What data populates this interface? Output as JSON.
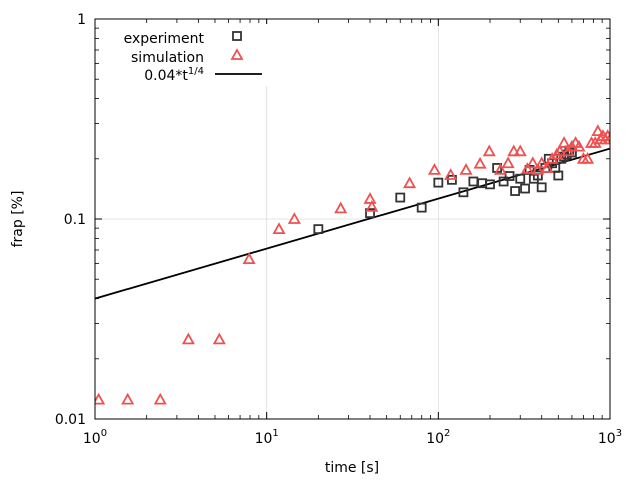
{
  "chart_data": {
    "type": "scatter",
    "xlabel": "time [s]",
    "ylabel": "frap [%]",
    "xscale": "log",
    "yscale": "log",
    "xlim": [
      1,
      1000
    ],
    "ylim": [
      0.01,
      1
    ],
    "grid": true,
    "legend_position": "top-left",
    "x_ticks": [
      {
        "value": 1,
        "base": "10",
        "exp": "0"
      },
      {
        "value": 10,
        "base": "10",
        "exp": "1"
      },
      {
        "value": 100,
        "base": "10",
        "exp": "2"
      },
      {
        "value": 1000,
        "base": "10",
        "exp": "3"
      }
    ],
    "y_ticks": [
      {
        "value": 0.01,
        "label": "0.01"
      },
      {
        "value": 0.1,
        "label": "0.1"
      },
      {
        "value": 1,
        "label": "1"
      }
    ],
    "series": [
      {
        "name": "experiment",
        "marker": "square",
        "color": "#333333",
        "points": [
          [
            20,
            0.089
          ],
          [
            40,
            0.107
          ],
          [
            60,
            0.128
          ],
          [
            80,
            0.114
          ],
          [
            100,
            0.152
          ],
          [
            120,
            0.157
          ],
          [
            140,
            0.136
          ],
          [
            160,
            0.154
          ],
          [
            180,
            0.151
          ],
          [
            200,
            0.149
          ],
          [
            220,
            0.18
          ],
          [
            240,
            0.154
          ],
          [
            260,
            0.164
          ],
          [
            280,
            0.138
          ],
          [
            300,
            0.159
          ],
          [
            320,
            0.142
          ],
          [
            340,
            0.176
          ],
          [
            360,
            0.159
          ],
          [
            380,
            0.165
          ],
          [
            400,
            0.144
          ],
          [
            420,
            0.18
          ],
          [
            440,
            0.2
          ],
          [
            460,
            0.19
          ],
          [
            480,
            0.18
          ],
          [
            500,
            0.165
          ],
          [
            520,
            0.2
          ],
          [
            540,
            0.205
          ],
          [
            560,
            0.21
          ],
          [
            580,
            0.22
          ],
          [
            600,
            0.215
          ]
        ]
      },
      {
        "name": "simulation",
        "marker": "triangle",
        "color": "#f05050",
        "points": [
          [
            1.05,
            0.0125
          ],
          [
            1.55,
            0.0125
          ],
          [
            2.4,
            0.0125
          ],
          [
            3.5,
            0.025
          ],
          [
            5.3,
            0.025
          ],
          [
            7.9,
            0.063
          ],
          [
            11.8,
            0.089
          ],
          [
            14.5,
            0.1
          ],
          [
            27,
            0.113
          ],
          [
            40,
            0.126
          ],
          [
            41,
            0.115
          ],
          [
            68,
            0.151
          ],
          [
            95,
            0.176
          ],
          [
            118,
            0.166
          ],
          [
            145,
            0.176
          ],
          [
            175,
            0.189
          ],
          [
            198,
            0.218
          ],
          [
            230,
            0.176
          ],
          [
            255,
            0.19
          ],
          [
            275,
            0.218
          ],
          [
            300,
            0.218
          ],
          [
            330,
            0.178
          ],
          [
            355,
            0.19
          ],
          [
            380,
            0.176
          ],
          [
            400,
            0.19
          ],
          [
            430,
            0.18
          ],
          [
            460,
            0.2
          ],
          [
            490,
            0.21
          ],
          [
            510,
            0.218
          ],
          [
            540,
            0.24
          ],
          [
            570,
            0.218
          ],
          [
            600,
            0.23
          ],
          [
            630,
            0.24
          ],
          [
            660,
            0.23
          ],
          [
            700,
            0.2
          ],
          [
            740,
            0.2
          ],
          [
            780,
            0.24
          ],
          [
            820,
            0.24
          ],
          [
            850,
            0.275
          ],
          [
            880,
            0.25
          ],
          [
            910,
            0.26
          ],
          [
            940,
            0.25
          ],
          [
            970,
            0.26
          ],
          [
            1000,
            0.25
          ]
        ]
      },
      {
        "name": "0.04*t",
        "name_sup": "1/4",
        "marker": "line",
        "color": "#000000",
        "coefficient": 0.04,
        "exponent": 0.25
      }
    ]
  }
}
